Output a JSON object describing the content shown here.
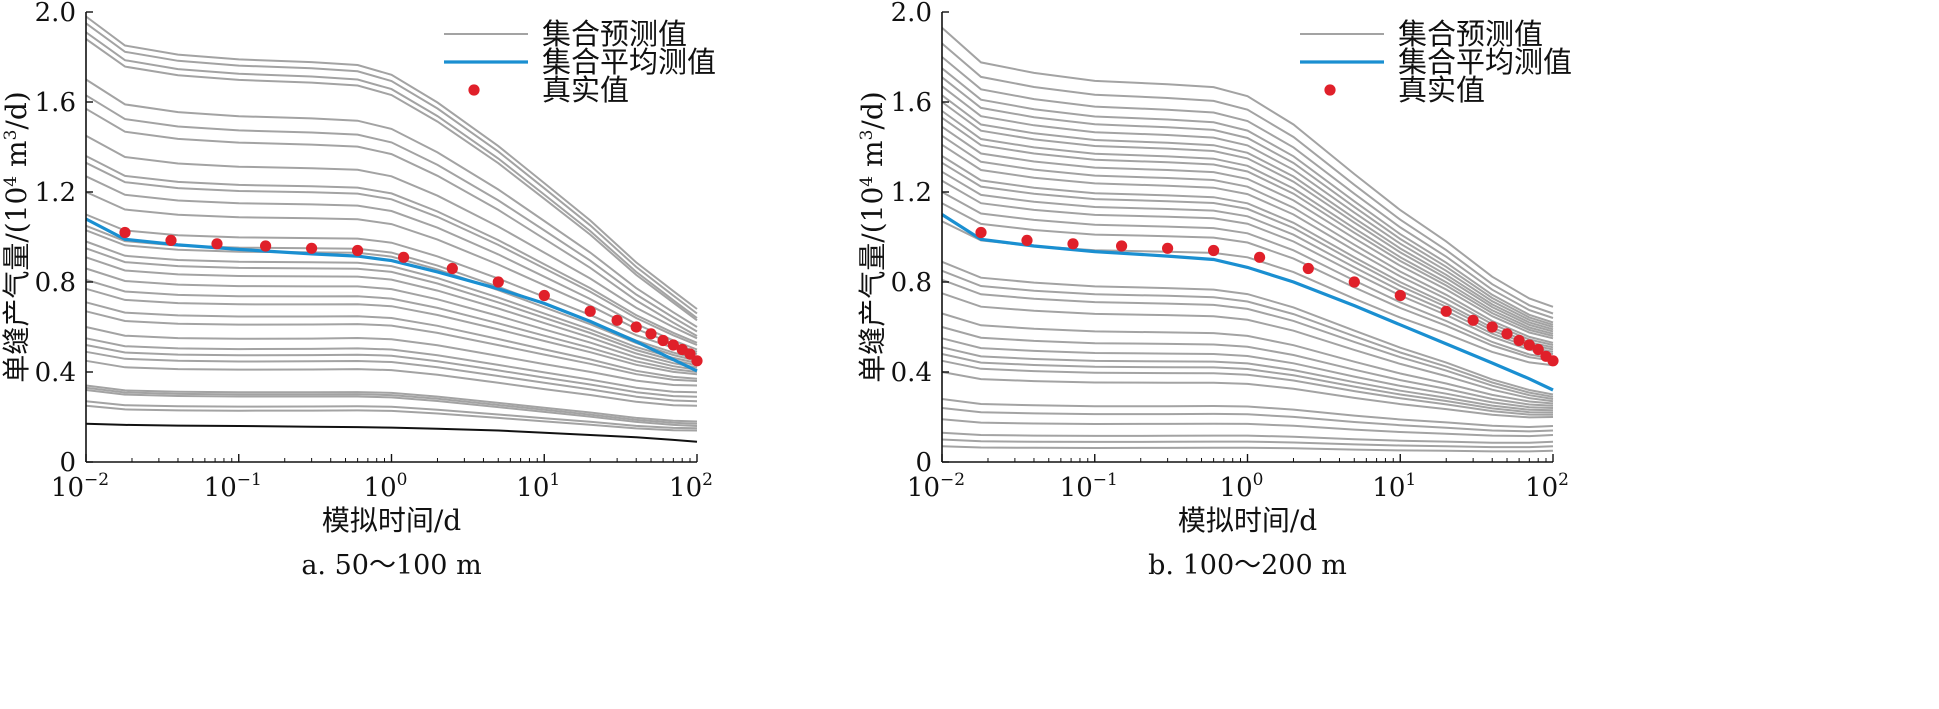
{
  "chart_data": [
    {
      "type": "line",
      "caption": "a. 50～100 m",
      "xlabel": "模拟时间/d",
      "ylabel_prefix": "单缝产气量/(10",
      "ylabel_sup1": "4",
      "ylabel_mid": " m",
      "ylabel_sup2": "3",
      "ylabel_suffix": "/d)",
      "x_scale": "log",
      "xlim": [
        0.01,
        100
      ],
      "ylim": [
        0,
        2.0
      ],
      "x_ticks": [
        {
          "base": "10",
          "exp": "−2",
          "value": 0.01
        },
        {
          "base": "10",
          "exp": "−1",
          "value": 0.1
        },
        {
          "base": "10",
          "exp": "0",
          "value": 1
        },
        {
          "base": "10",
          "exp": "1",
          "value": 10
        },
        {
          "base": "10",
          "exp": "2",
          "value": 100
        }
      ],
      "y_ticks": [
        "0",
        "0.4",
        "0.8",
        "1.2",
        "1.6",
        "2.0"
      ],
      "grid": false,
      "legend_position": "top-right",
      "legend": [
        {
          "label": "集合预测值",
          "kind": "line",
          "color": "#a3a3a3"
        },
        {
          "label": "集合平均测值",
          "kind": "line",
          "color": "#1a8fd1"
        },
        {
          "label": "真实值",
          "kind": "point",
          "color": "#e0202a"
        }
      ],
      "x": [
        0.01,
        0.018,
        0.04,
        0.1,
        0.3,
        0.6,
        1.0,
        2.0,
        5.0,
        10.0,
        20.0,
        40.0,
        70.0,
        100.0
      ],
      "ensemble_start": [
        1.98,
        1.95,
        1.91,
        1.88,
        1.7,
        1.63,
        1.57,
        1.45,
        1.36,
        1.33,
        1.27,
        1.2,
        1.1,
        1.05,
        1.03,
        0.98,
        0.95,
        0.91,
        0.86,
        0.81,
        0.77,
        0.71,
        0.67,
        0.6,
        0.55,
        0.52,
        0.49,
        0.45,
        0.34,
        0.33,
        0.32,
        0.27,
        0.25
      ],
      "ensemble_shape": [
        1.0,
        0.935,
        0.915,
        0.905,
        0.9,
        0.895,
        0.875,
        0.815,
        0.72,
        0.64,
        0.56,
        0.47,
        0.41,
        0.375
      ],
      "ensemble_end_override": [
        0.68,
        0.66,
        0.64,
        0.63,
        0.6,
        0.58,
        0.56,
        0.55,
        0.53,
        0.52,
        0.5,
        0.49,
        0.48,
        0.46,
        0.45,
        0.44,
        0.43,
        0.42,
        0.41,
        0.4,
        0.39,
        0.37,
        0.36,
        0.34,
        0.31,
        0.29,
        0.27,
        0.25,
        0.18,
        0.17,
        0.16,
        0.15,
        0.14
      ],
      "black_line": {
        "color": "#111111",
        "y": [
          0.17,
          0.165,
          0.162,
          0.16,
          0.157,
          0.155,
          0.153,
          0.148,
          0.14,
          0.13,
          0.12,
          0.11,
          0.098,
          0.09
        ]
      },
      "series": [
        {
          "name": "集合平均测值",
          "x": [
            0.01,
            0.018,
            0.04,
            0.1,
            0.3,
            0.6,
            1.0,
            2.0,
            5.0,
            10.0,
            20.0,
            40.0,
            70.0,
            100.0
          ],
          "y": [
            1.08,
            0.99,
            0.965,
            0.945,
            0.925,
            0.915,
            0.895,
            0.845,
            0.77,
            0.705,
            0.625,
            0.535,
            0.455,
            0.405
          ]
        },
        {
          "name": "真实值",
          "x": [
            0.018,
            0.036,
            0.072,
            0.15,
            0.3,
            0.6,
            1.2,
            2.5,
            5.0,
            10,
            20,
            30,
            40,
            50,
            60,
            70,
            80,
            90,
            100
          ],
          "y": [
            1.02,
            0.985,
            0.97,
            0.96,
            0.95,
            0.94,
            0.91,
            0.86,
            0.8,
            0.74,
            0.67,
            0.63,
            0.6,
            0.57,
            0.54,
            0.52,
            0.5,
            0.48,
            0.45
          ]
        }
      ]
    },
    {
      "type": "line",
      "caption": "b. 100～200 m",
      "xlabel": "模拟时间/d",
      "ylabel_prefix": "单缝产气量/(10",
      "ylabel_sup1": "4",
      "ylabel_mid": " m",
      "ylabel_sup2": "3",
      "ylabel_suffix": "/d)",
      "x_scale": "log",
      "xlim": [
        0.01,
        100
      ],
      "ylim": [
        0,
        2.0
      ],
      "x_ticks": [
        {
          "base": "10",
          "exp": "−2",
          "value": 0.01
        },
        {
          "base": "10",
          "exp": "−1",
          "value": 0.1
        },
        {
          "base": "10",
          "exp": "0",
          "value": 1
        },
        {
          "base": "10",
          "exp": "1",
          "value": 10
        },
        {
          "base": "10",
          "exp": "2",
          "value": 100
        }
      ],
      "y_ticks": [
        "0",
        "0.4",
        "0.8",
        "1.2",
        "1.6",
        "2.0"
      ],
      "grid": false,
      "legend_position": "top-right",
      "legend": [
        {
          "label": "集合预测值",
          "kind": "line",
          "color": "#a3a3a3"
        },
        {
          "label": "集合平均测值",
          "kind": "line",
          "color": "#1a8fd1"
        },
        {
          "label": "真实值",
          "kind": "point",
          "color": "#e0202a"
        }
      ],
      "x": [
        0.01,
        0.018,
        0.04,
        0.1,
        0.3,
        0.6,
        1.0,
        2.0,
        5.0,
        10.0,
        20.0,
        40.0,
        70.0,
        100.0
      ],
      "ensemble_start": [
        1.93,
        1.86,
        1.8,
        1.75,
        1.71,
        1.67,
        1.63,
        1.6,
        1.56,
        1.53,
        1.49,
        1.45,
        1.41,
        1.36,
        1.33,
        1.29,
        1.25,
        1.2,
        1.15,
        1.07,
        0.89,
        0.85,
        0.81,
        0.75,
        0.66,
        0.6,
        0.55,
        0.51,
        0.48,
        0.45,
        0.4,
        0.28,
        0.24,
        0.19,
        0.13,
        0.1,
        0.07
      ],
      "ensemble_shape": [
        1.0,
        0.92,
        0.895,
        0.875,
        0.865,
        0.855,
        0.83,
        0.76,
        0.64,
        0.55,
        0.47,
        0.38,
        0.32,
        0.29
      ],
      "ensemble_end_override": [
        0.69,
        0.66,
        0.64,
        0.62,
        0.61,
        0.6,
        0.59,
        0.58,
        0.57,
        0.56,
        0.55,
        0.53,
        0.52,
        0.51,
        0.5,
        0.49,
        0.48,
        0.46,
        0.45,
        0.43,
        0.3,
        0.29,
        0.28,
        0.27,
        0.26,
        0.25,
        0.24,
        0.23,
        0.22,
        0.21,
        0.2,
        0.16,
        0.14,
        0.12,
        0.09,
        0.07,
        0.05
      ],
      "black_line": null,
      "series": [
        {
          "name": "集合平均测值",
          "x": [
            0.01,
            0.018,
            0.04,
            0.1,
            0.3,
            0.6,
            1.0,
            2.0,
            5.0,
            10.0,
            20.0,
            40.0,
            70.0,
            100.0
          ],
          "y": [
            1.1,
            0.99,
            0.96,
            0.935,
            0.915,
            0.9,
            0.865,
            0.8,
            0.695,
            0.61,
            0.525,
            0.44,
            0.37,
            0.32
          ]
        },
        {
          "name": "真实值",
          "x": [
            0.018,
            0.036,
            0.072,
            0.15,
            0.3,
            0.6,
            1.2,
            2.5,
            5.0,
            10,
            20,
            30,
            40,
            50,
            60,
            70,
            80,
            90,
            100
          ],
          "y": [
            1.02,
            0.985,
            0.97,
            0.96,
            0.95,
            0.94,
            0.91,
            0.86,
            0.8,
            0.74,
            0.67,
            0.63,
            0.6,
            0.57,
            0.54,
            0.52,
            0.5,
            0.47,
            0.45
          ]
        }
      ]
    }
  ]
}
